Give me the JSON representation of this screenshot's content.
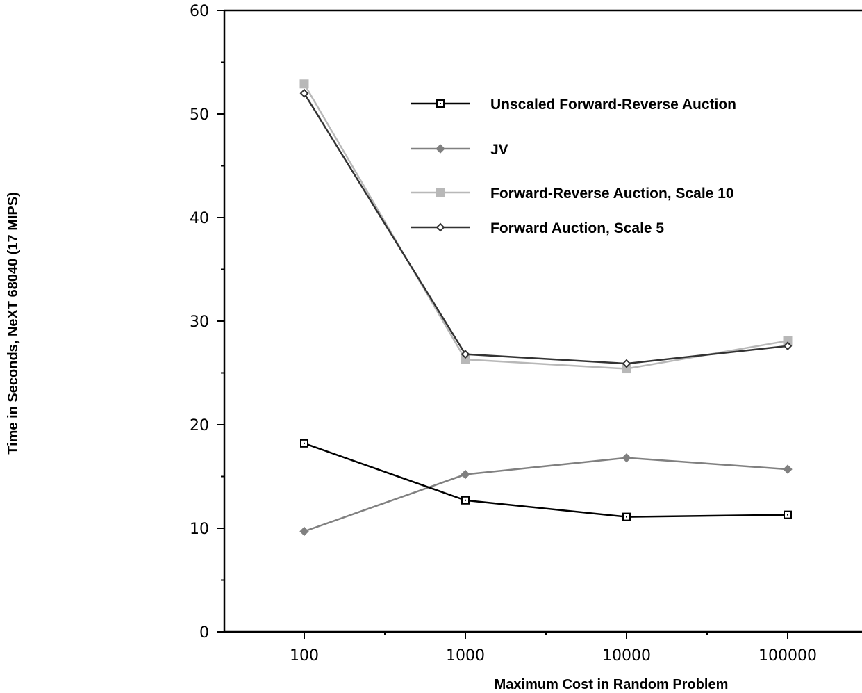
{
  "chart_data": {
    "type": "line",
    "title": "",
    "xlabel": "Maximum Cost in Random Problem",
    "ylabel": "Time in Seconds, NeXT 68040 (17 MIPS)",
    "x_scale": "log",
    "x": [
      100,
      1000,
      10000,
      100000
    ],
    "x_tick_labels": [
      "100",
      "1000",
      "10000",
      "100000"
    ],
    "ylim": [
      0,
      60
    ],
    "y_ticks": [
      0,
      10,
      20,
      30,
      40,
      50,
      60
    ],
    "y_tick_labels": [
      "0",
      "10",
      "20",
      "30",
      "40",
      "50",
      "60"
    ],
    "grid": false,
    "legend_position": "top-right",
    "series": [
      {
        "name": "Unscaled Forward-Reverse Auction",
        "values": [
          18.2,
          12.7,
          11.1,
          11.3
        ],
        "color": "#000000",
        "marker": "open-square"
      },
      {
        "name": "JV",
        "values": [
          9.7,
          15.2,
          16.8,
          15.7
        ],
        "color": "#808080",
        "marker": "filled-diamond"
      },
      {
        "name": "Forward-Reverse Auction, Scale 10",
        "values": [
          52.9,
          26.3,
          25.4,
          28.1
        ],
        "color": "#b8b8b8",
        "marker": "filled-square"
      },
      {
        "name": "Forward Auction, Scale 5",
        "values": [
          52.0,
          26.8,
          25.9,
          27.6
        ],
        "color": "#333333",
        "marker": "open-diamond"
      }
    ]
  }
}
